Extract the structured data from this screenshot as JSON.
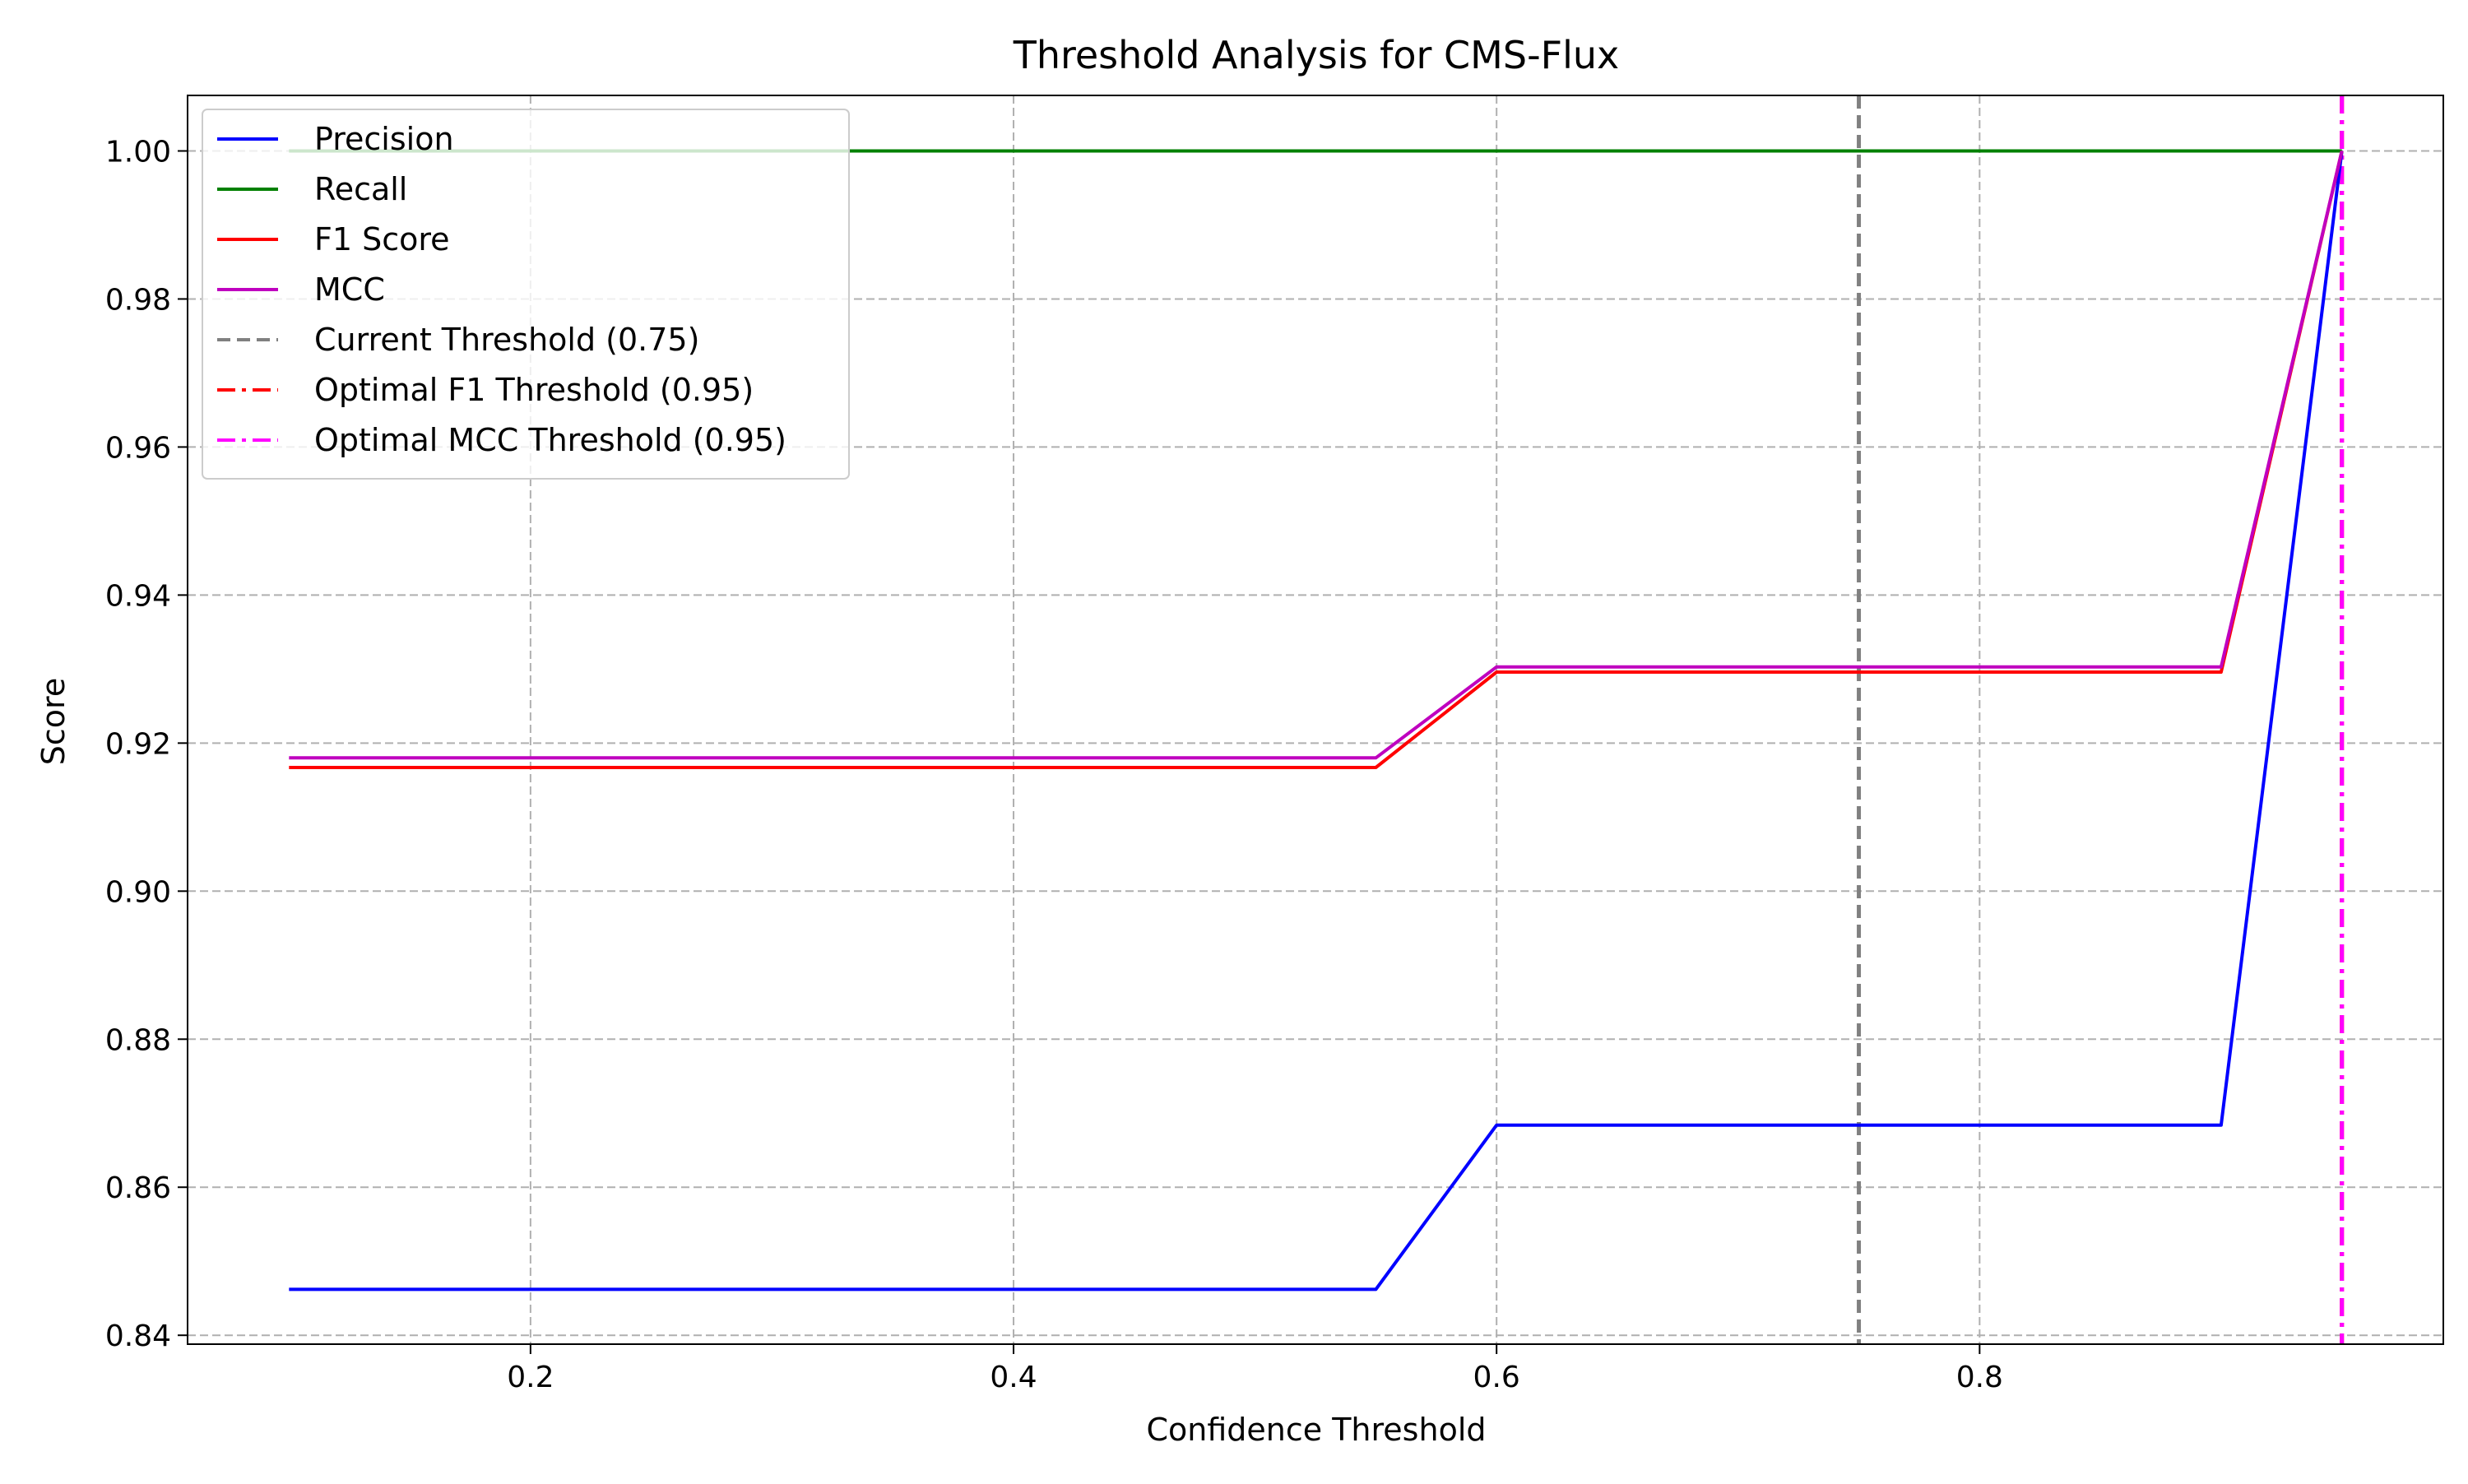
{
  "chart_data": {
    "type": "line",
    "title": "Threshold Analysis for CMS-Flux",
    "xlabel": "Confidence Threshold",
    "ylabel": "Score",
    "xlim": [
      0.058,
      0.992
    ],
    "ylim": [
      0.8388,
      1.0075
    ],
    "grid": true,
    "legend_position": "top-left",
    "x_ticks": [
      0.2,
      0.4,
      0.6,
      0.8
    ],
    "x_tick_labels": [
      "0.2",
      "0.4",
      "0.6",
      "0.8"
    ],
    "y_ticks": [
      0.84,
      0.86,
      0.88,
      0.9,
      0.92,
      0.94,
      0.96,
      0.98,
      1.0
    ],
    "y_tick_labels": [
      "0.84",
      "0.86",
      "0.88",
      "0.90",
      "0.92",
      "0.94",
      "0.96",
      "0.98",
      "1.00"
    ],
    "x": [
      0.1,
      0.15,
      0.2,
      0.25,
      0.3,
      0.35,
      0.4,
      0.45,
      0.5,
      0.55,
      0.6,
      0.65,
      0.7,
      0.75,
      0.8,
      0.85,
      0.9,
      0.95
    ],
    "series": [
      {
        "name": "Precision",
        "color": "#0000ff",
        "dash": "solid",
        "values": [
          0.8462,
          0.8462,
          0.8462,
          0.8462,
          0.8462,
          0.8462,
          0.8462,
          0.8462,
          0.8462,
          0.8462,
          0.8684,
          0.8684,
          0.8684,
          0.8684,
          0.8684,
          0.8684,
          0.8684,
          1.0
        ]
      },
      {
        "name": "Recall",
        "color": "#008000",
        "dash": "solid",
        "values": [
          1.0,
          1.0,
          1.0,
          1.0,
          1.0,
          1.0,
          1.0,
          1.0,
          1.0,
          1.0,
          1.0,
          1.0,
          1.0,
          1.0,
          1.0,
          1.0,
          1.0,
          1.0
        ]
      },
      {
        "name": "F1 Score",
        "color": "#ff0000",
        "dash": "solid",
        "values": [
          0.9167,
          0.9167,
          0.9167,
          0.9167,
          0.9167,
          0.9167,
          0.9167,
          0.9167,
          0.9167,
          0.9167,
          0.9296,
          0.9296,
          0.9296,
          0.9296,
          0.9296,
          0.9296,
          0.9296,
          1.0
        ]
      },
      {
        "name": "MCC",
        "color": "#bf00bf",
        "dash": "solid",
        "values": [
          0.918,
          0.918,
          0.918,
          0.918,
          0.918,
          0.918,
          0.918,
          0.918,
          0.918,
          0.918,
          0.9303,
          0.9303,
          0.9303,
          0.9303,
          0.9303,
          0.9303,
          0.9303,
          1.0
        ]
      }
    ],
    "threshold_lines": [
      {
        "name": "Current Threshold (0.75)",
        "x": 0.75,
        "color": "#808080",
        "dash": "dashed"
      },
      {
        "name": "Optimal F1 Threshold (0.95)",
        "x": 0.95,
        "color": "#ff0000",
        "dash": "dashdot"
      },
      {
        "name": "Optimal MCC Threshold (0.95)",
        "x": 0.95,
        "color": "#ff00ff",
        "dash": "dashdot"
      }
    ]
  }
}
